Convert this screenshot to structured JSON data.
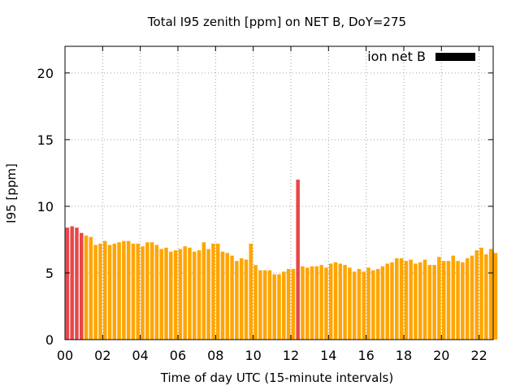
{
  "chart_data": {
    "type": "bar",
    "title": "Total I95 zenith [ppm] on NET B, DoY=275",
    "xlabel": "Time of day UTC (15-minute intervals)",
    "ylabel": "I95 [ppm]",
    "ylim": [
      0,
      22
    ],
    "yticks": [
      0,
      5,
      10,
      15,
      20
    ],
    "xlim": [
      0,
      22.75
    ],
    "xticks": [
      "00",
      "02",
      "04",
      "06",
      "08",
      "10",
      "12",
      "14",
      "16",
      "18",
      "20",
      "22"
    ],
    "legend": {
      "label": "ion net B",
      "placement": "top-right"
    },
    "colors": {
      "normal": "#FFA500",
      "high": "#E8474A",
      "legend": "#000000"
    },
    "grid": true,
    "series": [
      {
        "name": "ion net B",
        "interval_hours": 0.25,
        "values": [
          8.4,
          8.5,
          8.4,
          8.0,
          7.8,
          7.7,
          7.1,
          7.2,
          7.4,
          7.1,
          7.2,
          7.3,
          7.4,
          7.4,
          7.2,
          7.2,
          7.0,
          7.3,
          7.3,
          7.1,
          6.8,
          6.9,
          6.6,
          6.7,
          6.8,
          7.0,
          6.9,
          6.6,
          6.7,
          7.3,
          6.8,
          7.2,
          7.2,
          6.6,
          6.5,
          6.3,
          5.9,
          6.1,
          6.0,
          7.2,
          5.6,
          5.2,
          5.2,
          5.2,
          4.9,
          4.9,
          5.1,
          5.3,
          5.3,
          12.0,
          5.5,
          5.4,
          5.5,
          5.5,
          5.6,
          5.4,
          5.7,
          5.8,
          5.7,
          5.6,
          5.4,
          5.1,
          5.3,
          5.1,
          5.4,
          5.2,
          5.3,
          5.5,
          5.7,
          5.8,
          6.1,
          6.1,
          5.9,
          6.0,
          5.7,
          5.8,
          6.0,
          5.6,
          5.6,
          6.2,
          5.9,
          5.9,
          6.3,
          5.9,
          5.8,
          6.1,
          6.3,
          6.7,
          6.9,
          6.4,
          6.8,
          6.5
        ],
        "high_flags": [
          1,
          1,
          1,
          1,
          0,
          0,
          0,
          0,
          0,
          0,
          0,
          0,
          0,
          0,
          0,
          0,
          0,
          0,
          0,
          0,
          0,
          0,
          0,
          0,
          0,
          0,
          0,
          0,
          0,
          0,
          0,
          0,
          0,
          0,
          0,
          0,
          0,
          0,
          0,
          0,
          0,
          0,
          0,
          0,
          0,
          0,
          0,
          0,
          0,
          1,
          0,
          0,
          0,
          0,
          0,
          0,
          0,
          0,
          0,
          0,
          0,
          0,
          0,
          0,
          0,
          0,
          0,
          0,
          0,
          0,
          0,
          0,
          0,
          0,
          0,
          0,
          0,
          0,
          0,
          0,
          0,
          0,
          0,
          0,
          0,
          0,
          0,
          0,
          0,
          0,
          0,
          0
        ]
      }
    ]
  }
}
